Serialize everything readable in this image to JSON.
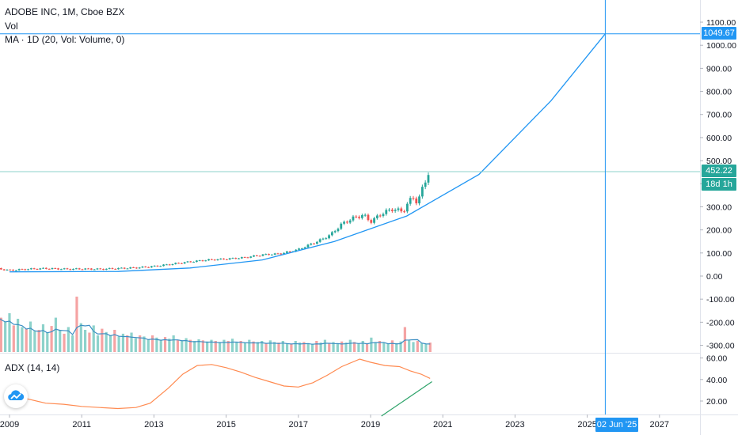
{
  "legend": {
    "symbol_line": "ADOBE INC, 1M, Cboe BZX",
    "volume_label": "Vol",
    "ma_label": "MA · 1D (20, Vol: Volume, 0)",
    "adx_label": "ADX (14, 14)"
  },
  "colors": {
    "up": "#26a69a",
    "down": "#ef5350",
    "vol_up": "#8dd2cb",
    "vol_down": "#f5a3a3",
    "curve": "#2196f3",
    "ma_line": "#3d8fc4",
    "adx_line": "#ff8a50",
    "trend_line": "#2ea36a",
    "price_tag": "#26a69a",
    "crosshair_tag": "#2196f3"
  },
  "tags": {
    "crosshair_price": "1049.67",
    "last_price": "452.22",
    "countdown": "18d 1h",
    "crosshair_date": "02 Jun '25"
  },
  "chart_data": [
    {
      "type": "candlestick",
      "title": "ADOBE INC, 1M, Cboe BZX",
      "y_axis_ticks": [
        "1100.00",
        "1000.00",
        "900.00",
        "800.00",
        "700.00",
        "600.00",
        "500.00",
        "400.00",
        "300.00",
        "200.00",
        "100.00",
        "0.00",
        "-100.00",
        "-200.00",
        "-300.00"
      ],
      "x_axis_ticks": [
        "2009",
        "2011",
        "2013",
        "2015",
        "2017",
        "2019",
        "2021",
        "2023",
        "2025",
        "2027"
      ],
      "ylim": [
        -320,
        1180
      ],
      "last_price": 452.22,
      "crosshair": {
        "price": 1049.67,
        "date": "02 Jun '25"
      },
      "price_points": [
        {
          "t": 2008.5,
          "price": 35
        },
        {
          "t": 2009.0,
          "price": 25
        },
        {
          "t": 2009.5,
          "price": 30
        },
        {
          "t": 2010.0,
          "price": 33
        },
        {
          "t": 2010.6,
          "price": 30
        },
        {
          "t": 2011.0,
          "price": 31
        },
        {
          "t": 2011.5,
          "price": 30
        },
        {
          "t": 2012.0,
          "price": 33
        },
        {
          "t": 2012.5,
          "price": 36
        },
        {
          "t": 2013.0,
          "price": 42
        },
        {
          "t": 2013.5,
          "price": 52
        },
        {
          "t": 2014.0,
          "price": 62
        },
        {
          "t": 2014.5,
          "price": 70
        },
        {
          "t": 2015.0,
          "price": 74
        },
        {
          "t": 2015.5,
          "price": 80
        },
        {
          "t": 2016.0,
          "price": 92
        },
        {
          "t": 2016.5,
          "price": 97
        },
        {
          "t": 2017.0,
          "price": 115
        },
        {
          "t": 2017.3,
          "price": 135
        },
        {
          "t": 2017.6,
          "price": 155
        },
        {
          "t": 2017.9,
          "price": 180
        },
        {
          "t": 2018.2,
          "price": 225
        },
        {
          "t": 2018.5,
          "price": 250
        },
        {
          "t": 2018.8,
          "price": 265
        },
        {
          "t": 2019.0,
          "price": 235
        },
        {
          "t": 2019.3,
          "price": 270
        },
        {
          "t": 2019.6,
          "price": 290
        },
        {
          "t": 2019.9,
          "price": 280
        },
        {
          "t": 2020.1,
          "price": 330
        },
        {
          "t": 2020.2,
          "price": 345
        },
        {
          "t": 2020.3,
          "price": 310
        },
        {
          "t": 2020.45,
          "price": 390
        },
        {
          "t": 2020.55,
          "price": 430
        },
        {
          "t": 2020.65,
          "price": 452.22
        }
      ],
      "curve": {
        "type": "line",
        "points": [
          {
            "t": 2009.0,
            "price": 18
          },
          {
            "t": 2012.0,
            "price": 20
          },
          {
            "t": 2014.0,
            "price": 35
          },
          {
            "t": 2016.0,
            "price": 70
          },
          {
            "t": 2018.0,
            "price": 150
          },
          {
            "t": 2020.0,
            "price": 260
          },
          {
            "t": 2022.0,
            "price": 440
          },
          {
            "t": 2024.0,
            "price": 760
          },
          {
            "t": 2025.5,
            "price": 1049.67
          }
        ]
      }
    },
    {
      "type": "bar",
      "title": "Vol",
      "note": "volume histogram with 20-period moving average overlay",
      "volume_relative": [
        0.75,
        0.62,
        0.55,
        0.7,
        0.48,
        0.6,
        0.45,
        0.42,
        0.55,
        0.38,
        0.4,
        0.5,
        0.35,
        0.47,
        0.62,
        0.4,
        0.33,
        0.45,
        0.3,
        1.0,
        0.52,
        0.4,
        0.35,
        0.48,
        0.3,
        0.42,
        0.36,
        0.3,
        0.4,
        0.28,
        0.33,
        0.3,
        0.35,
        0.25,
        0.3,
        0.28,
        0.22,
        0.3,
        0.26,
        0.22,
        0.27,
        0.24,
        0.3,
        0.22,
        0.2,
        0.25,
        0.22,
        0.2,
        0.23,
        0.21,
        0.19,
        0.22,
        0.2,
        0.18,
        0.22,
        0.2,
        0.24,
        0.18,
        0.2,
        0.17,
        0.22,
        0.19,
        0.18,
        0.2,
        0.16,
        0.21,
        0.18,
        0.17,
        0.2,
        0.16,
        0.15,
        0.2,
        0.17,
        0.18,
        0.16,
        0.15,
        0.2,
        0.17,
        0.22,
        0.15,
        0.18,
        0.16,
        0.19,
        0.17,
        0.22,
        0.18,
        0.15,
        0.2,
        0.16,
        0.26,
        0.18,
        0.2,
        0.17,
        0.15,
        0.21,
        0.16,
        0.19,
        0.45,
        0.22,
        0.18,
        0.2,
        0.16,
        0.15,
        0.17
      ]
    },
    {
      "type": "line",
      "title": "ADX (14, 14)",
      "y_axis_ticks": [
        "60.00",
        "40.00",
        "20.00"
      ],
      "ylim": [
        5,
        62
      ],
      "series": [
        {
          "name": "ADX",
          "points": [
            {
              "t": 2008.9,
              "v": 30
            },
            {
              "t": 2009.5,
              "v": 22
            },
            {
              "t": 2010.0,
              "v": 18
            },
            {
              "t": 2010.5,
              "v": 17
            },
            {
              "t": 2011.0,
              "v": 15
            },
            {
              "t": 2011.5,
              "v": 14
            },
            {
              "t": 2012.0,
              "v": 13
            },
            {
              "t": 2012.5,
              "v": 14
            },
            {
              "t": 2012.9,
              "v": 18
            },
            {
              "t": 2013.4,
              "v": 32
            },
            {
              "t": 2013.8,
              "v": 45
            },
            {
              "t": 2014.2,
              "v": 53
            },
            {
              "t": 2014.6,
              "v": 54
            },
            {
              "t": 2015.0,
              "v": 51
            },
            {
              "t": 2015.4,
              "v": 47
            },
            {
              "t": 2015.8,
              "v": 42
            },
            {
              "t": 2016.2,
              "v": 38
            },
            {
              "t": 2016.6,
              "v": 34
            },
            {
              "t": 2017.0,
              "v": 33
            },
            {
              "t": 2017.4,
              "v": 37
            },
            {
              "t": 2017.8,
              "v": 44
            },
            {
              "t": 2018.2,
              "v": 52
            },
            {
              "t": 2018.7,
              "v": 59
            },
            {
              "t": 2019.0,
              "v": 56
            },
            {
              "t": 2019.4,
              "v": 53
            },
            {
              "t": 2019.8,
              "v": 52
            },
            {
              "t": 2020.1,
              "v": 48
            },
            {
              "t": 2020.4,
              "v": 45
            },
            {
              "t": 2020.65,
              "v": 41
            }
          ]
        }
      ],
      "trend_line": {
        "points": [
          {
            "t": 2019.3,
            "v": 6
          },
          {
            "t": 2020.7,
            "v": 38
          }
        ]
      }
    }
  ]
}
